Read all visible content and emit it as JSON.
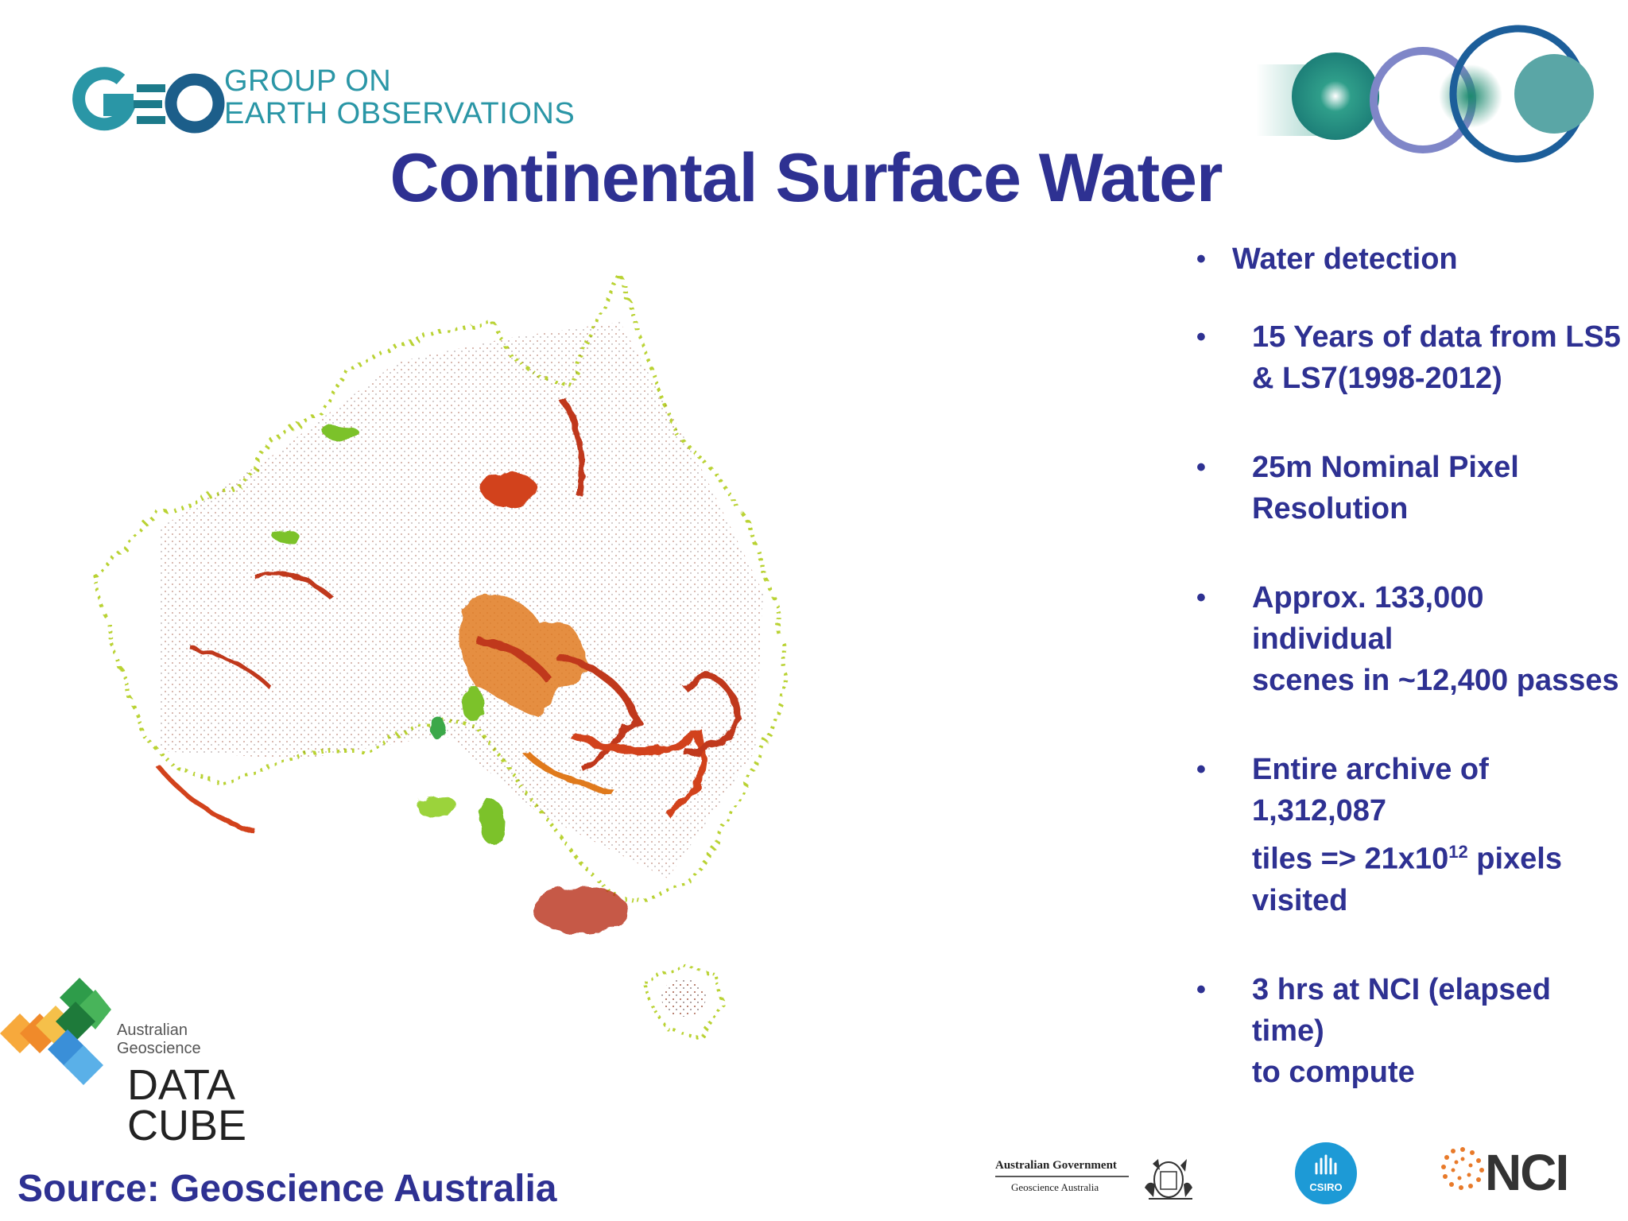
{
  "header": {
    "geo_line1": "GROUP ON",
    "geo_line2": "EARTH OBSERVATIONS",
    "title": "Continental Surface Water"
  },
  "bullets": [
    {
      "parts": [
        "Water detection"
      ]
    },
    {
      "parts": [
        "15 Years of data from LS5",
        "& LS7(1998-2012)"
      ]
    },
    {
      "parts": [
        "25m Nominal Pixel",
        "Resolution"
      ]
    },
    {
      "parts": [
        "Approx. 133,000 individual",
        "scenes in ~12,400 passes"
      ]
    },
    {
      "parts": [
        "Entire archive of 1,312,087",
        "tiles => 21x10",
        "12",
        " pixels",
        "visited"
      ]
    },
    {
      "parts": [
        "3 hrs at NCI (elapsed time)",
        "to compute"
      ]
    }
  ],
  "logos": {
    "datacube_small_1": "Australian",
    "datacube_small_2": "Geoscience",
    "datacube_big_1": "DATA",
    "datacube_big_2": "CUBE",
    "ag_line1": "Australian Government",
    "ag_line2": "Geoscience Australia",
    "csiro": "CSIRO",
    "nci": "NCI"
  },
  "footer": {
    "source": "Source: Geoscience Australia"
  },
  "colors": {
    "title": "#2e3192",
    "geo_teal": "#2a96a6",
    "map_red": "#c0381a",
    "map_orange": "#e07a1c",
    "map_green": "#7cc22a",
    "map_yellow": "#e8e53a"
  }
}
